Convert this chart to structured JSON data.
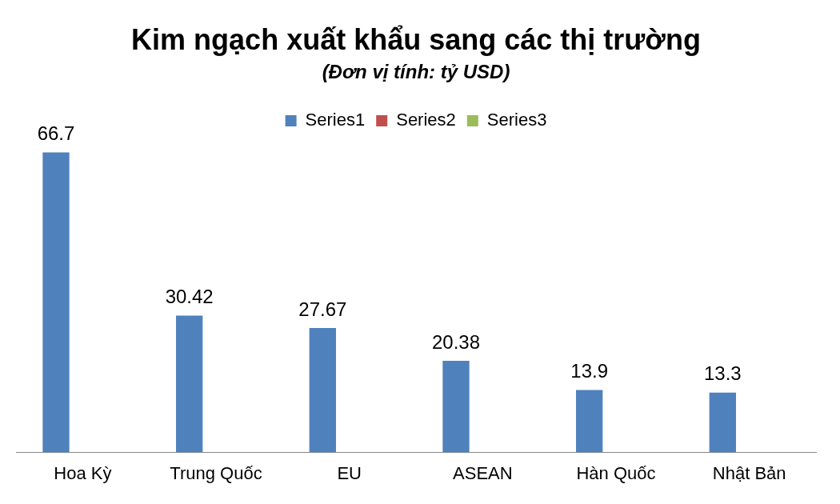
{
  "chart_data": {
    "type": "bar",
    "title": "Kim ngạch xuất khẩu sang các thị trường",
    "subtitle": "(Đơn vị tính: tỷ USD)",
    "categories": [
      "Hoa Kỳ",
      "Trung Quốc",
      "EU",
      "ASEAN",
      "Hàn Quốc",
      "Nhật Bản"
    ],
    "series": [
      {
        "name": "Series1",
        "color": "#4f81bd",
        "values": [
          66.7,
          30.42,
          27.67,
          20.38,
          13.9,
          13.3
        ]
      },
      {
        "name": "Series2",
        "color": "#c0504d",
        "values": [
          null,
          null,
          null,
          null,
          null,
          null
        ]
      },
      {
        "name": "Series3",
        "color": "#9bbb59",
        "values": [
          null,
          null,
          null,
          null,
          null,
          null
        ]
      }
    ],
    "data_labels": true,
    "grid": false,
    "legend": "top"
  }
}
